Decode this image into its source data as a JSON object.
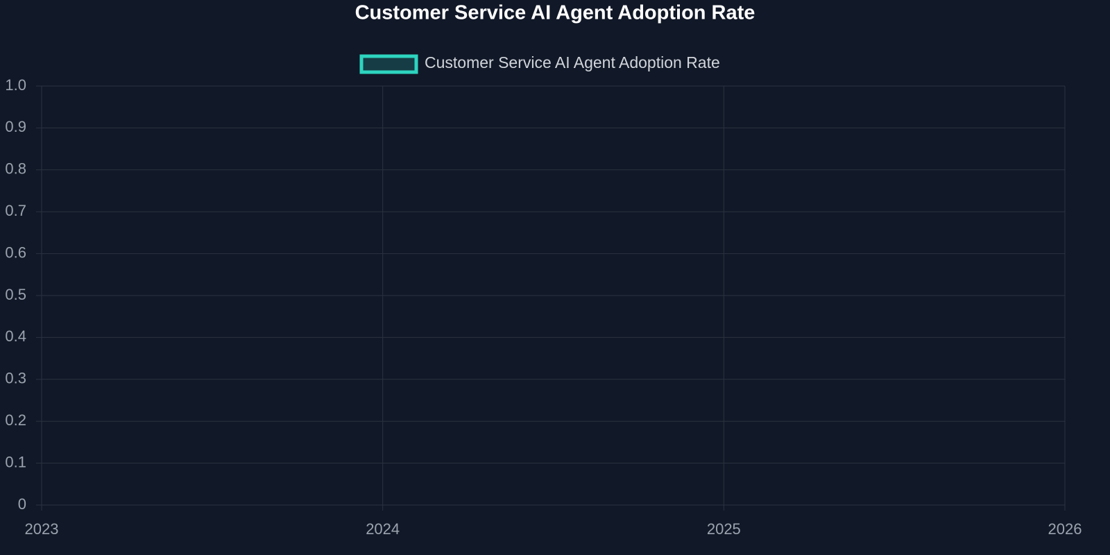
{
  "chart_data": {
    "type": "line",
    "title": "Customer Service AI Agent Adoption Rate",
    "x": [],
    "series": [
      {
        "name": "Customer Service AI Agent Adoption Rate",
        "color": "#2dd4bf",
        "values": []
      }
    ],
    "xlim": [
      2023,
      2026
    ],
    "xticks": [
      2023,
      2024,
      2025,
      2026
    ],
    "ylim": [
      0,
      1
    ],
    "yticks": [
      0,
      0.1,
      0.2,
      0.3,
      0.4,
      0.5,
      0.6,
      0.7,
      0.8,
      0.9,
      {
        "value": 1,
        "label": "1.0"
      }
    ],
    "grid": true,
    "legend": "top"
  }
}
